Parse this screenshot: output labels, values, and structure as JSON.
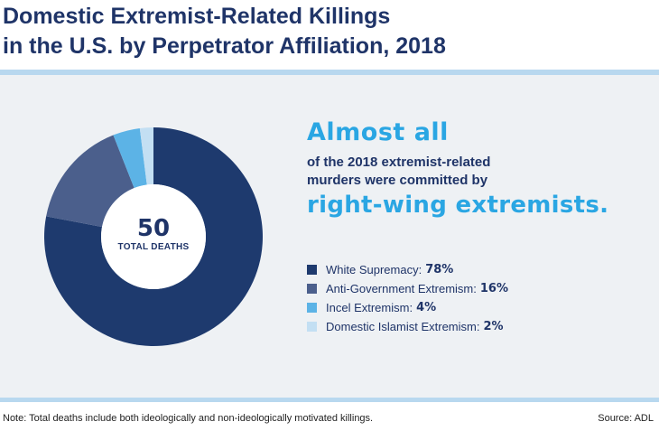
{
  "title_line1": "Domestic Extremist-Related Killings",
  "title_line2": "in the U.S. by Perpetrator Affiliation, 2018",
  "headline": "Almost all",
  "body_line1": "of the 2018 extremist-related",
  "body_line2": "murders were committed by",
  "emphasis": "right-wing extremists.",
  "center_number": "50",
  "center_label": "TOTAL DEATHS",
  "note": "Note: Total deaths include both ideologically and non-ideologically motivated killings.",
  "source": "Source: ADL",
  "colors": {
    "background": "#eef1f4",
    "accent": "#2aa6e3",
    "navy": "#1f3468",
    "rule": "#b8d8ef"
  },
  "chart_data": {
    "type": "pie",
    "title": "Domestic Extremist-Related Killings in the U.S. by Perpetrator Affiliation, 2018",
    "total": 50,
    "legend_position": "right",
    "series": [
      {
        "name": "White Supremacy",
        "value": 78,
        "label": "78%",
        "color": "#1e3a6e"
      },
      {
        "name": "Anti-Government Extremism",
        "value": 16,
        "label": "16%",
        "color": "#4b5f8c"
      },
      {
        "name": "Incel Extremism",
        "value": 4,
        "label": "4%",
        "color": "#5cb3e6"
      },
      {
        "name": "Domestic Islamist Extremism",
        "value": 2,
        "label": "2%",
        "color": "#c3dff3"
      }
    ]
  }
}
